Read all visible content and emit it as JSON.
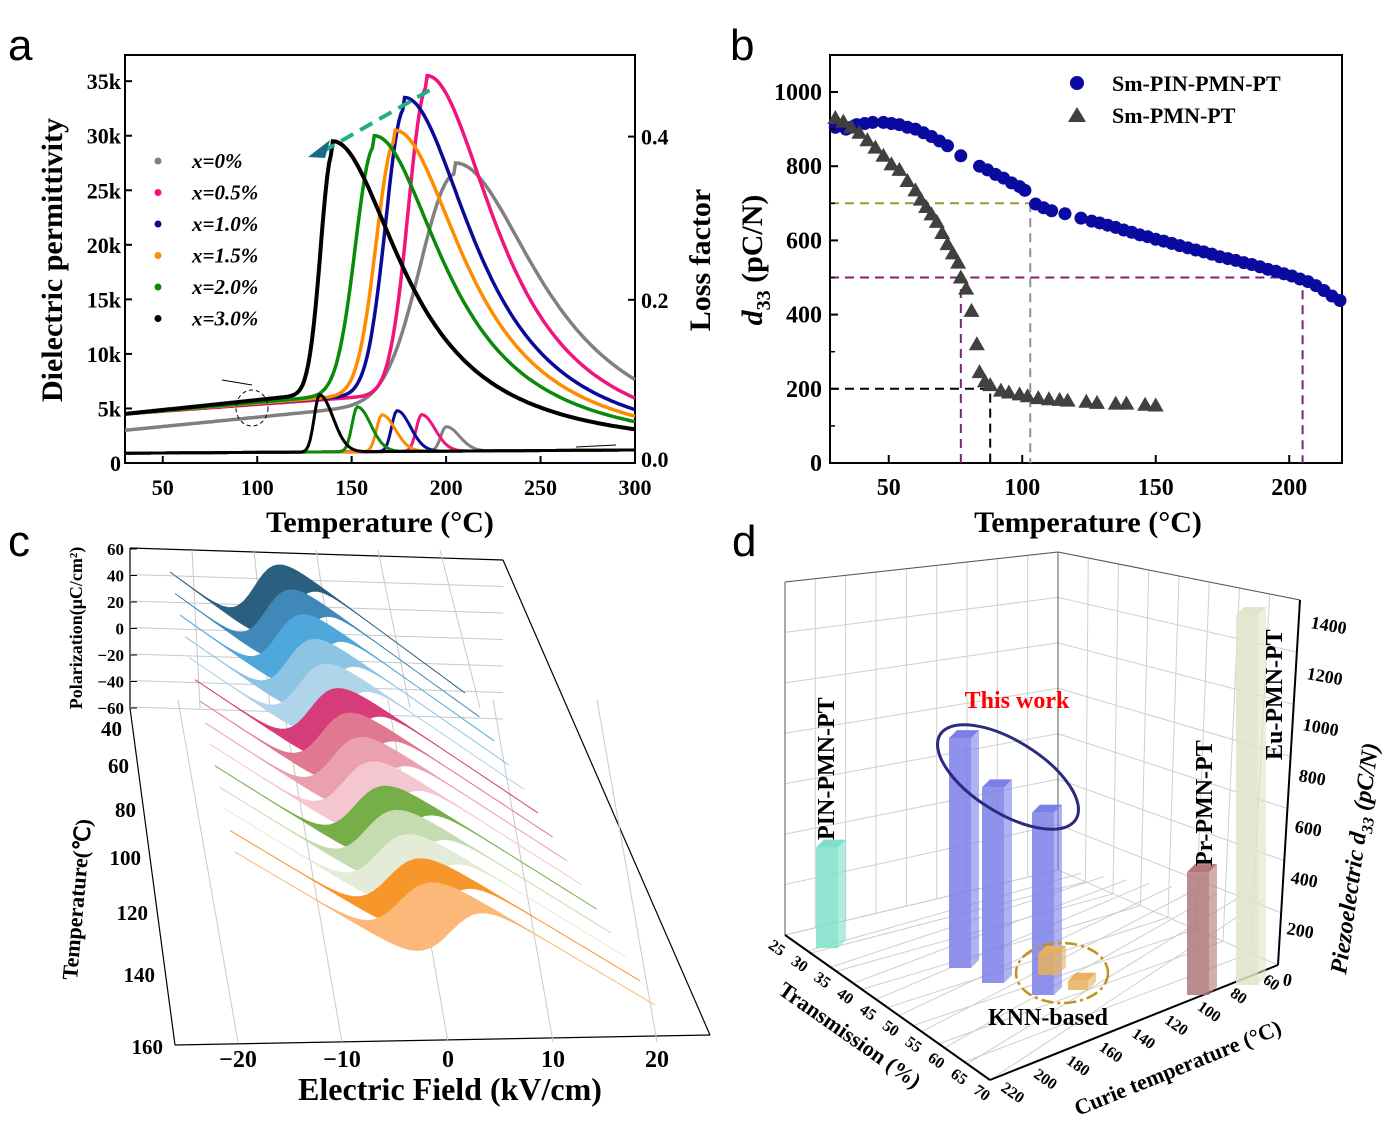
{
  "panels": {
    "a": "a",
    "b": "b",
    "c": "c",
    "d": "d"
  },
  "chart_data": [
    {
      "type": "line",
      "panel": "a",
      "xlabel": "Temperature (°C)",
      "ylabel": "Dielectric permittivity",
      "y2label": "Loss factor",
      "xlim": [
        30,
        300
      ],
      "ylim": [
        0,
        37400
      ],
      "y2lim": [
        0,
        0.5
      ],
      "xticks": [
        "50",
        "100",
        "150",
        "200",
        "250",
        "300"
      ],
      "yticks": [
        "0",
        "5k",
        "10k",
        "15k",
        "20k",
        "25k",
        "30k",
        "35k"
      ],
      "y2ticks": [
        "0.0",
        "0.2",
        "0.4"
      ],
      "legend_position": "left",
      "series": [
        {
          "name": "x=0%",
          "color": "#808080",
          "marker": "diamond",
          "peak_temperature": 205,
          "peak_permittivity": 26500,
          "loss_peak_temperature": 200,
          "loss_peak": 0.03
        },
        {
          "name": "x=0.5%",
          "color": "#f0147c",
          "marker": "triangle-up",
          "peak_temperature": 190,
          "peak_permittivity": 34500,
          "loss_peak_temperature": 187,
          "loss_peak": 0.045
        },
        {
          "name": "x=1.0%",
          "color": "#0a0a9a",
          "marker": "square",
          "peak_temperature": 178,
          "peak_permittivity": 32500,
          "loss_peak_temperature": 174,
          "loss_peak": 0.05
        },
        {
          "name": "x=1.5%",
          "color": "#ff8c00",
          "marker": "square",
          "peak_temperature": 173,
          "peak_permittivity": 29500,
          "loss_peak_temperature": 166,
          "loss_peak": 0.045
        },
        {
          "name": "x=2.0%",
          "color": "#0a8a0a",
          "marker": "triangle-up",
          "peak_temperature": 162,
          "peak_permittivity": 29000,
          "loss_peak_temperature": 153,
          "loss_peak": 0.055
        },
        {
          "name": "x=3.0%",
          "color": "#000000",
          "marker": "triangle-down",
          "peak_temperature": 140,
          "peak_permittivity": 28500,
          "loss_peak_temperature": 133,
          "loss_peak": 0.07
        }
      ]
    },
    {
      "type": "scatter",
      "panel": "b",
      "xlabel": "Temperature (°C)",
      "ylabel": {
        "italic": "d",
        "sub": "33",
        "rest": " (pC/N)"
      },
      "xlim": [
        28,
        220
      ],
      "ylim": [
        0,
        1100
      ],
      "xticks": [
        50,
        100,
        150,
        200
      ],
      "yticks": [
        0,
        200,
        400,
        600,
        800,
        1000
      ],
      "legend_position": "top-right",
      "series": [
        {
          "name": "Sm-PIN-PMN-PT",
          "color": "#0a0aa0",
          "marker": "circle",
          "x": [
            30,
            34,
            36,
            38,
            41,
            44,
            48,
            51,
            54,
            57,
            60,
            63,
            66,
            69,
            72,
            77,
            84,
            87,
            90,
            93,
            96,
            99,
            101,
            105,
            108,
            111,
            116,
            122,
            126,
            129,
            132,
            135,
            138,
            141,
            144,
            147,
            150,
            153,
            156,
            159,
            162,
            165,
            168,
            171,
            174,
            177,
            180,
            183,
            186,
            189,
            192,
            195,
            198,
            201,
            204,
            207,
            210,
            213,
            216,
            219
          ],
          "y": [
            905,
            900,
            905,
            912,
            915,
            918,
            918,
            915,
            912,
            905,
            900,
            890,
            880,
            868,
            855,
            828,
            800,
            790,
            778,
            768,
            755,
            745,
            735,
            698,
            688,
            680,
            672,
            660,
            652,
            647,
            641,
            635,
            628,
            622,
            615,
            610,
            603,
            598,
            592,
            586,
            580,
            574,
            569,
            563,
            556,
            551,
            546,
            540,
            535,
            529,
            522,
            517,
            510,
            504,
            496,
            489,
            478,
            465,
            450,
            438
          ]
        },
        {
          "name": "Sm-PMN-PT",
          "color": "#404040",
          "marker": "triangle-up",
          "x": [
            30,
            33,
            36,
            39,
            42,
            45,
            48,
            51,
            54,
            57,
            60,
            62,
            64,
            66,
            68,
            70,
            72,
            74,
            76,
            77,
            79,
            81,
            83,
            84,
            86,
            88,
            92,
            95,
            99,
            102,
            106,
            110,
            114,
            117,
            124,
            128,
            135,
            139,
            146
          ],
          "y": [
            930,
            920,
            905,
            890,
            870,
            850,
            828,
            805,
            790,
            760,
            735,
            710,
            690,
            670,
            650,
            620,
            590,
            565,
            540,
            500,
            470,
            410,
            320,
            245,
            220,
            210,
            195,
            190,
            185,
            180,
            175,
            172,
            170,
            168,
            165,
            162,
            160,
            160,
            157
          ]
        },
        {
          "name": "",
          "x": [
            150
          ],
          "y": [
            155
          ],
          "color": "#404040",
          "marker": "triangle-up"
        }
      ],
      "reference_lines": [
        {
          "y": 700,
          "x": 103,
          "color": "#9a9a30"
        },
        {
          "y": 500,
          "x_left": 77,
          "x_right": 205,
          "color": "#80207a"
        },
        {
          "y": 200,
          "x": 88,
          "color": "#000000"
        }
      ]
    },
    {
      "type": "area",
      "panel": "c",
      "xlabel": "Electric Field (kV/cm)",
      "ylabel": "Polarization(μC/cm²)",
      "zlabel": "Temperature(℃)",
      "xticks": [
        "−20",
        "−10",
        "0",
        "10",
        "20"
      ],
      "yticks": [
        "60",
        "40",
        "20",
        "0",
        "−20",
        "−40",
        "−60"
      ],
      "zticks": [
        "40",
        "60",
        "80",
        "100",
        "120",
        "140",
        "160"
      ],
      "loop_colors": [
        "#2a5f80",
        "#3f88b8",
        "#4ea8dc",
        "#8cc4e4",
        "#b0d4ea",
        "#d63c7a",
        "#e07890",
        "#eba0b0",
        "#f4c6d0",
        "#76ae48",
        "#c4dcb0",
        "#e4ecd8",
        "#f7962a",
        "#fbb878"
      ]
    },
    {
      "type": "bar",
      "panel": "d",
      "xlabel": "Transmission (%)",
      "ylabel": "Curie temperature (°C)",
      "zlabel": {
        "rest1": "Piezoelectric ",
        "italic": "d",
        "sub": "33",
        "rest2": " (pC/N)"
      },
      "xticks": [
        "25",
        "30",
        "35",
        "40",
        "45",
        "50",
        "55",
        "60",
        "65",
        "70"
      ],
      "yticks": [
        "220",
        "200",
        "180",
        "160",
        "140",
        "120",
        "100",
        "80",
        "60"
      ],
      "zticks": [
        "0",
        "200",
        "400",
        "600",
        "800",
        "1000",
        "1200",
        "1400"
      ],
      "zlim": [
        0,
        1400
      ],
      "annotations": {
        "this_work": "This work",
        "knn": "KNN-based",
        "this_work_color": "#ff0000"
      },
      "bars": [
        {
          "label": "PIN-PMN-PT",
          "d33": 380,
          "color": "#7fe0c8"
        },
        {
          "label": "",
          "d33": 870,
          "color": "#7b7fe8"
        },
        {
          "label": "",
          "d33": 740,
          "color": "#7b7fe8"
        },
        {
          "label": "",
          "d33": 690,
          "color": "#7b7fe8"
        },
        {
          "label": "",
          "d33": 80,
          "color": "#e8b060"
        },
        {
          "label": "",
          "d33": 35,
          "color": "#e8b060"
        },
        {
          "label": "Pr-PMN-PT",
          "d33": 465,
          "color": "#b07878"
        },
        {
          "label": "Eu-PMN-PT",
          "d33": 1400,
          "color": "#e0e4c8"
        }
      ]
    }
  ]
}
